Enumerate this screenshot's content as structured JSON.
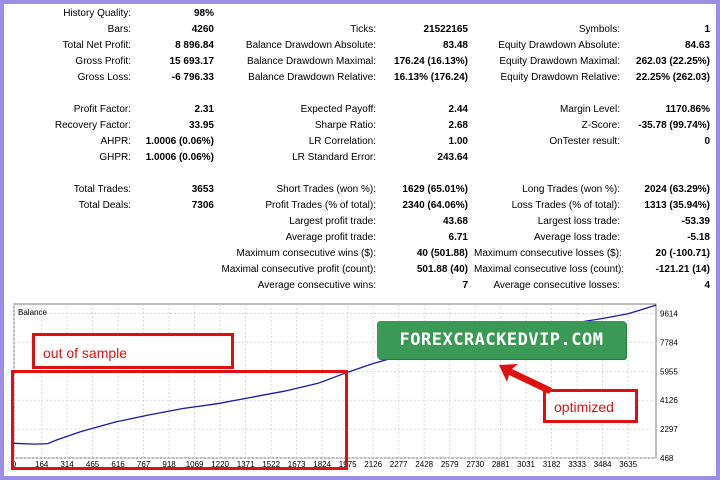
{
  "rows": [
    {
      "c1": [
        "History Quality:",
        "98%"
      ]
    },
    {
      "c1": [
        "Bars:",
        "4260"
      ],
      "c2": [
        "Ticks:",
        "21522165"
      ],
      "c3": [
        "Symbols:",
        "1"
      ]
    },
    {
      "c1": [
        "Total Net Profit:",
        "8 896.84"
      ],
      "c2": [
        "Balance Drawdown Absolute:",
        "83.48"
      ],
      "c3": [
        "Equity Drawdown Absolute:",
        "84.63"
      ]
    },
    {
      "c1": [
        "Gross Profit:",
        "15 693.17"
      ],
      "c2": [
        "Balance Drawdown Maximal:",
        "176.24 (16.13%)"
      ],
      "c3": [
        "Equity Drawdown Maximal:",
        "262.03 (22.25%)"
      ]
    },
    {
      "c1": [
        "Gross Loss:",
        "-6 796.33"
      ],
      "c2": [
        "Balance Drawdown Relative:",
        "16.13% (176.24)"
      ],
      "c3": [
        "Equity Drawdown Relative:",
        "22.25% (262.03)"
      ]
    },
    {},
    {
      "c1": [
        "Profit Factor:",
        "2.31"
      ],
      "c2": [
        "Expected Payoff:",
        "2.44"
      ],
      "c3": [
        "Margin Level:",
        "1170.86%"
      ]
    },
    {
      "c1": [
        "Recovery Factor:",
        "33.95"
      ],
      "c2": [
        "Sharpe Ratio:",
        "2.68"
      ],
      "c3": [
        "Z-Score:",
        "-35.78 (99.74%)"
      ]
    },
    {
      "c1": [
        "AHPR:",
        "1.0006 (0.06%)"
      ],
      "c2": [
        "LR Correlation:",
        "1.00"
      ],
      "c3": [
        "OnTester result:",
        "0"
      ]
    },
    {
      "c1": [
        "GHPR:",
        "1.0006 (0.06%)"
      ],
      "c2": [
        "LR Standard Error:",
        "243.64"
      ]
    },
    {},
    {
      "c1": [
        "Total Trades:",
        "3653"
      ],
      "c2": [
        "Short Trades (won %):",
        "1629 (65.01%)"
      ],
      "c3": [
        "Long Trades (won %):",
        "2024 (63.29%)"
      ]
    },
    {
      "c1": [
        "Total Deals:",
        "7306"
      ],
      "c2": [
        "Profit Trades (% of total):",
        "2340 (64.06%)"
      ],
      "c3": [
        "Loss Trades (% of total):",
        "1313 (35.94%)"
      ]
    },
    {
      "c2": [
        "Largest profit trade:",
        "43.68"
      ],
      "c3": [
        "Largest loss trade:",
        "-53.39"
      ]
    },
    {
      "c2": [
        "Average profit trade:",
        "6.71"
      ],
      "c3": [
        "Average loss trade:",
        "-5.18"
      ]
    },
    {
      "c2": [
        "Maximum consecutive wins ($):",
        "40 (501.88)"
      ],
      "c3": [
        "Maximum consecutive losses ($):",
        "20 (-100.71)"
      ]
    },
    {
      "c2": [
        "Maximal consecutive profit (count):",
        "501.88 (40)"
      ],
      "c3": [
        "Maximal consecutive loss (count):",
        "-121.21 (14)"
      ]
    },
    {
      "c2": [
        "Average consecutive wins:",
        "7"
      ],
      "c3": [
        "Average consecutive losses:",
        "4"
      ]
    }
  ],
  "chart_data": {
    "type": "line",
    "title": "Balance",
    "y_ticks": [
      9614,
      7784,
      5955,
      4126,
      2297,
      468
    ],
    "x_ticks": [
      0,
      164,
      314,
      465,
      616,
      767,
      918,
      1069,
      1220,
      1371,
      1522,
      1673,
      1824,
      1975,
      2126,
      2277,
      2428,
      2579,
      2730,
      2881,
      3031,
      3182,
      3333,
      3484,
      3635
    ],
    "xlim": [
      0,
      3800
    ],
    "ylim": [
      468,
      10220
    ],
    "grid": true,
    "series": [
      {
        "x": [
          0,
          120,
          200,
          250,
          400,
          600,
          800,
          1000,
          1200,
          1400,
          1600,
          1800,
          1975,
          2126,
          2277,
          2428,
          2579,
          2730,
          2881,
          3031,
          3182,
          3333,
          3484,
          3635,
          3800
        ],
        "values": [
          1400,
          1350,
          1380,
          1600,
          2150,
          2750,
          3200,
          3600,
          3900,
          4300,
          4700,
          5200,
          5900,
          6450,
          6900,
          7300,
          7650,
          7850,
          8150,
          8450,
          8750,
          9050,
          9300,
          9600,
          10150
        ],
        "color": "#1a1aa8"
      }
    ]
  },
  "badge": "FOREXCRACKEDVIP.COM",
  "annotations": {
    "out_of_sample": "out of sample",
    "optimized": "optimized"
  },
  "colors": {
    "frame": "#9a8ee6",
    "line": "#1a1aa8",
    "annotation": "#e01010",
    "badge": "#3a9a55"
  }
}
